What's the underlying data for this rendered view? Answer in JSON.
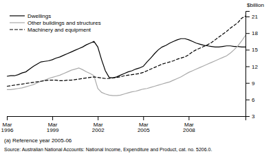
{
  "chart_data": {
    "type": "line",
    "ylabel": "$billion",
    "annotations": [
      "(a) Reference year 2005-06",
      "Source: Australian National Accounts: National Income, Expenditure and Product, cat. no. 5206.0."
    ],
    "categories": [
      "Mar\n1996",
      null,
      null,
      null,
      null,
      null,
      null,
      null,
      null,
      null,
      null,
      null,
      "Mar\n1999",
      null,
      null,
      null,
      null,
      null,
      null,
      null,
      null,
      null,
      null,
      null,
      "Mar\n2002",
      null,
      null,
      null,
      null,
      null,
      null,
      null,
      null,
      null,
      null,
      null,
      "Mar\n2005",
      null,
      null,
      null,
      null,
      null,
      null,
      null,
      null,
      null,
      null,
      null,
      "Mar\n2008",
      null,
      null,
      null,
      null,
      null,
      null,
      null,
      null,
      null,
      null,
      null,
      null,
      null,
      null,
      null
    ],
    "series": [
      {
        "name": "Dwellings",
        "color": "#000000",
        "line_style": "solid",
        "values": [
          10.2,
          10.3,
          10.3,
          10.5,
          10.8,
          11.0,
          11.5,
          12.0,
          12.4,
          12.8,
          12.9,
          13.0,
          13.2,
          13.5,
          13.7,
          14.0,
          14.3,
          14.6,
          14.9,
          15.2,
          15.5,
          15.9,
          16.2,
          16.5,
          15.5,
          13.2,
          11.2,
          10.0,
          9.9,
          10.1,
          10.4,
          10.7,
          11.0,
          11.2,
          11.5,
          11.7,
          12.0,
          12.8,
          13.5,
          14.3,
          15.0,
          15.5,
          15.8,
          16.2,
          16.5,
          16.8,
          17.0,
          17.0,
          16.8,
          16.5,
          16.2,
          16.0,
          15.8,
          15.7,
          15.6,
          15.5,
          15.5,
          15.6,
          15.7,
          15.7,
          15.6,
          15.6,
          15.5,
          15.5
        ]
      },
      {
        "name": "Other buildings and structures",
        "color": "#aaaaaa",
        "line_style": "solid",
        "values": [
          7.8,
          7.8,
          7.9,
          8.0,
          8.1,
          8.3,
          8.5,
          8.7,
          9.0,
          9.3,
          9.5,
          9.8,
          10.0,
          10.2,
          10.4,
          10.7,
          11.0,
          11.3,
          11.5,
          11.7,
          11.4,
          11.0,
          10.7,
          10.3,
          8.0,
          7.3,
          7.0,
          6.8,
          6.7,
          6.7,
          6.8,
          7.0,
          7.2,
          7.4,
          7.5,
          7.7,
          7.9,
          8.0,
          8.2,
          8.4,
          8.6,
          8.8,
          9.0,
          9.2,
          9.5,
          9.8,
          10.1,
          10.5,
          10.9,
          11.2,
          11.5,
          11.8,
          12.1,
          12.4,
          12.7,
          13.0,
          13.3,
          13.6,
          13.9,
          14.4,
          15.0,
          15.7,
          16.6,
          17.6
        ]
      },
      {
        "name": "Machinery and equipment",
        "color": "#000000",
        "line_style": "dashed",
        "values": [
          8.4,
          8.5,
          8.6,
          8.7,
          8.8,
          8.9,
          9.0,
          9.1,
          9.2,
          9.3,
          9.4,
          9.5,
          9.5,
          9.5,
          9.4,
          9.4,
          9.5,
          9.5,
          9.6,
          9.7,
          9.8,
          9.9,
          10.0,
          10.1,
          10.0,
          9.9,
          9.8,
          9.8,
          9.9,
          10.0,
          10.1,
          10.3,
          10.4,
          10.5,
          10.6,
          10.7,
          10.9,
          11.2,
          11.5,
          11.8,
          12.1,
          12.4,
          12.6,
          12.8,
          13.0,
          13.3,
          13.5,
          13.7,
          14.1,
          14.6,
          15.0,
          15.3,
          15.6,
          15.9,
          16.3,
          16.8,
          17.3,
          17.8,
          18.3,
          18.9,
          19.4,
          19.9,
          20.7,
          21.1
        ]
      }
    ],
    "ylim": [
      3,
      22
    ],
    "yticks": [
      3,
      6,
      9,
      12,
      15,
      18,
      21
    ],
    "grid": false,
    "legend": "top-left"
  }
}
